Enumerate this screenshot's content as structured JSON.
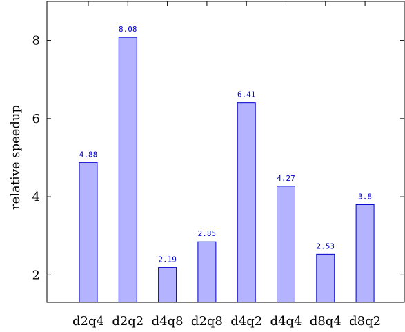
{
  "chart_data": {
    "type": "bar",
    "categories": [
      "d2q4",
      "d2q2",
      "d4q8",
      "d2q8",
      "d4q2",
      "d4q4",
      "d8q4",
      "d8q2"
    ],
    "values": [
      4.88,
      8.08,
      2.19,
      2.85,
      6.41,
      4.27,
      2.53,
      3.8
    ],
    "value_labels": [
      "4.88",
      "8.08",
      "2.19",
      "2.85",
      "6.41",
      "4.27",
      "2.53",
      "3.8"
    ],
    "ylabel": "relative speedup",
    "ylim": [
      1.3,
      9.0
    ],
    "yticks": [
      2,
      4,
      6,
      8
    ],
    "grid": false,
    "colors": {
      "bar_fill": "#b3b3ff",
      "bar_stroke": "#0000cc",
      "label": "#0000cc",
      "axis": "#000000"
    }
  }
}
